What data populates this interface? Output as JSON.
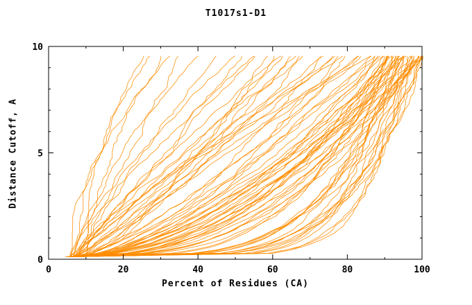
{
  "chart_data": {
    "type": "line",
    "title": "T1017s1-D1",
    "xlabel": "Percent of Residues (CA)",
    "ylabel": "Distance Cutoff, A",
    "xlim": [
      0,
      100
    ],
    "ylim": [
      0,
      10
    ],
    "xticks": [
      0,
      20,
      40,
      60,
      80,
      100
    ],
    "yticks": [
      0,
      5,
      10
    ],
    "x_minor_step": 10,
    "y_minor_step": 1,
    "line_color": "#ff8c00",
    "axis_color": "#000000",
    "background": "#ffffff",
    "legend": "none",
    "grid": false,
    "curve_format": "[start_x_at_cutoff_0, end_x_at_cutoff_10, shape_exponent, wiggle_amplitude, seed]",
    "curves": [
      [
        7,
        27,
        1.6,
        1.0,
        101
      ],
      [
        8,
        30,
        1.4,
        1.2,
        102
      ],
      [
        6,
        33,
        1.8,
        0.9,
        103
      ],
      [
        9,
        36,
        1.2,
        1.1,
        104
      ],
      [
        7,
        40,
        1.5,
        0.8,
        105
      ],
      [
        8,
        45,
        1.1,
        1.3,
        106
      ],
      [
        10,
        25,
        2.0,
        0.7,
        107
      ],
      [
        6,
        50,
        1.3,
        1.0,
        108
      ],
      [
        6,
        52,
        0.9,
        1.4,
        109
      ],
      [
        8,
        56,
        1.1,
        1.2,
        110
      ],
      [
        7,
        60,
        0.7,
        1.5,
        111
      ],
      [
        9,
        63,
        1.0,
        1.3,
        112
      ],
      [
        6,
        66,
        0.8,
        1.4,
        113
      ],
      [
        8,
        69,
        1.2,
        1.2,
        114
      ],
      [
        7,
        72,
        0.6,
        1.5,
        115
      ],
      [
        9,
        75,
        0.9,
        1.3,
        116
      ],
      [
        6,
        78,
        1.1,
        1.2,
        117
      ],
      [
        8,
        80,
        0.7,
        1.4,
        118
      ],
      [
        7,
        82,
        1.0,
        1.2,
        119
      ],
      [
        9,
        84,
        0.8,
        1.3,
        120
      ],
      [
        6,
        86,
        1.2,
        1.1,
        121
      ],
      [
        8,
        58,
        0.65,
        1.5,
        122
      ],
      [
        7,
        62,
        1.15,
        1.2,
        123
      ],
      [
        9,
        68,
        0.75,
        1.4,
        124
      ],
      [
        6,
        74,
        1.05,
        1.2,
        125
      ],
      [
        8,
        79,
        0.6,
        1.5,
        126
      ],
      [
        7,
        83,
        0.95,
        1.2,
        127
      ],
      [
        9,
        87,
        0.7,
        1.4,
        128
      ],
      [
        6,
        55,
        1.25,
        1.1,
        129
      ],
      [
        8,
        65,
        0.85,
        1.3,
        130
      ],
      [
        7,
        77,
        1.1,
        1.2,
        131
      ],
      [
        9,
        85,
        0.65,
        1.4,
        132
      ],
      [
        5,
        88,
        0.5,
        1.3,
        133
      ],
      [
        7,
        90,
        0.45,
        1.2,
        134
      ],
      [
        6,
        92,
        0.55,
        1.4,
        135
      ],
      [
        8,
        94,
        0.4,
        1.2,
        136
      ],
      [
        5,
        96,
        0.6,
        1.3,
        137
      ],
      [
        7,
        98,
        0.35,
        1.2,
        138
      ],
      [
        6,
        100,
        0.5,
        1.4,
        139
      ],
      [
        8,
        89,
        0.65,
        1.2,
        140
      ],
      [
        5,
        91,
        0.4,
        1.3,
        141
      ],
      [
        7,
        93,
        0.55,
        1.2,
        142
      ],
      [
        6,
        95,
        0.45,
        1.4,
        143
      ],
      [
        8,
        97,
        0.6,
        1.2,
        144
      ],
      [
        5,
        99,
        0.38,
        1.3,
        145
      ],
      [
        7,
        100,
        0.52,
        1.2,
        146
      ],
      [
        6,
        88,
        0.7,
        1.3,
        147
      ],
      [
        8,
        90,
        0.42,
        1.2,
        148
      ],
      [
        5,
        92,
        0.58,
        1.4,
        149
      ],
      [
        7,
        94,
        0.36,
        1.2,
        150
      ],
      [
        6,
        96,
        0.5,
        1.3,
        151
      ],
      [
        8,
        98,
        0.62,
        1.2,
        152
      ],
      [
        5,
        100,
        0.44,
        1.4,
        153
      ],
      [
        7,
        89,
        0.56,
        1.2,
        154
      ],
      [
        6,
        91,
        0.4,
        1.3,
        155
      ],
      [
        8,
        93,
        0.66,
        1.2,
        156
      ],
      [
        5,
        95,
        0.48,
        1.4,
        157
      ],
      [
        7,
        97,
        0.37,
        1.2,
        158
      ],
      [
        6,
        99,
        0.54,
        1.3,
        159
      ],
      [
        8,
        100,
        0.46,
        1.2,
        160
      ],
      [
        6,
        90,
        0.18,
        1.0,
        161
      ],
      [
        8,
        92,
        0.22,
        1.1,
        162
      ],
      [
        7,
        94,
        0.15,
        1.0,
        163
      ],
      [
        9,
        96,
        0.25,
        1.1,
        164
      ],
      [
        6,
        98,
        0.13,
        1.0,
        165
      ],
      [
        8,
        100,
        0.2,
        1.1,
        166
      ],
      [
        7,
        91,
        0.28,
        1.0,
        167
      ],
      [
        9,
        93,
        0.16,
        1.1,
        168
      ],
      [
        6,
        95,
        0.24,
        1.0,
        169
      ],
      [
        8,
        97,
        0.14,
        1.1,
        170
      ],
      [
        7,
        99,
        0.21,
        1.0,
        171
      ],
      [
        9,
        100,
        0.27,
        1.1,
        172
      ],
      [
        6,
        92,
        0.17,
        1.0,
        173
      ],
      [
        8,
        94,
        0.23,
        1.1,
        174
      ],
      [
        7,
        96,
        0.13,
        1.0,
        175
      ],
      [
        9,
        98,
        0.26,
        1.1,
        176
      ],
      [
        6,
        100,
        0.19,
        1.0,
        177
      ],
      [
        8,
        91,
        0.3,
        1.1,
        178
      ],
      [
        7,
        95,
        0.15,
        1.0,
        179
      ],
      [
        9,
        99,
        0.22,
        1.1,
        180
      ]
    ]
  }
}
